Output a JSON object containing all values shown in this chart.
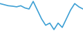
{
  "y_values": [
    7,
    6.5,
    6,
    5.8,
    5.5,
    6,
    5,
    4.5,
    8,
    4,
    0,
    -3,
    -2,
    -5,
    -2,
    -4,
    0,
    4,
    7,
    5.5,
    4.5
  ],
  "line_color": "#3c9fd4",
  "line_width": 1.2,
  "background_color": "#ffffff",
  "figsize": [
    1.2,
    0.45
  ],
  "dpi": 100
}
